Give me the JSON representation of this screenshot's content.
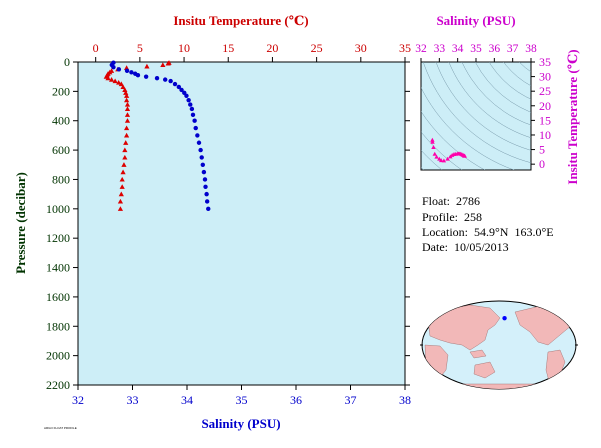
{
  "chart_data": [
    {
      "type": "scatter",
      "name": "main-profile",
      "top_axis": {
        "label": "Insitu Temperature (℃)",
        "range": [
          -2,
          35
        ],
        "ticks": [
          0,
          5,
          10,
          15,
          20,
          25,
          30,
          35
        ],
        "color": "#cc0000"
      },
      "bottom_axis": {
        "label": "Salinity (PSU)",
        "range": [
          32,
          38
        ],
        "ticks": [
          32,
          33,
          34,
          35,
          36,
          37,
          38
        ],
        "color": "#0000cc"
      },
      "left_axis": {
        "label": "Pressure (decibar)",
        "range": [
          0,
          2200
        ],
        "reversed": true,
        "ticks": [
          0,
          200,
          400,
          600,
          800,
          1000,
          1200,
          1400,
          1600,
          1800,
          2000,
          2200
        ],
        "color": "#003300"
      },
      "background": "#cdeef7",
      "series": [
        {
          "variable": "temperature",
          "color": "#dd0000",
          "marker": "triangle",
          "points": [
            [
              8.3,
              5
            ],
            [
              8.2,
              10
            ],
            [
              7.6,
              20
            ],
            [
              5.8,
              30
            ],
            [
              3.5,
              40
            ],
            [
              2.5,
              50
            ],
            [
              1.8,
              60
            ],
            [
              1.6,
              70
            ],
            [
              1.4,
              80
            ],
            [
              1.3,
              90
            ],
            [
              1.2,
              100
            ],
            [
              1.4,
              110
            ],
            [
              1.8,
              120
            ],
            [
              2.2,
              130
            ],
            [
              2.6,
              140
            ],
            [
              2.9,
              150
            ],
            [
              3.1,
              170
            ],
            [
              3.3,
              190
            ],
            [
              3.4,
              210
            ],
            [
              3.5,
              230
            ],
            [
              3.5,
              260
            ],
            [
              3.6,
              290
            ],
            [
              3.6,
              320
            ],
            [
              3.6,
              360
            ],
            [
              3.6,
              400
            ],
            [
              3.5,
              450
            ],
            [
              3.5,
              500
            ],
            [
              3.4,
              550
            ],
            [
              3.3,
              600
            ],
            [
              3.3,
              650
            ],
            [
              3.2,
              700
            ],
            [
              3.1,
              750
            ],
            [
              3.0,
              800
            ],
            [
              3.0,
              850
            ],
            [
              2.9,
              900
            ],
            [
              2.8,
              950
            ],
            [
              2.8,
              1000
            ]
          ]
        },
        {
          "variable": "salinity",
          "color": "#0000cc",
          "marker": "circle",
          "points": [
            [
              32.65,
              5
            ],
            [
              32.62,
              20
            ],
            [
              32.65,
              35
            ],
            [
              32.75,
              50
            ],
            [
              32.9,
              60
            ],
            [
              32.98,
              70
            ],
            [
              33.05,
              80
            ],
            [
              33.1,
              90
            ],
            [
              33.25,
              100
            ],
            [
              33.45,
              110
            ],
            [
              33.6,
              120
            ],
            [
              33.7,
              130
            ],
            [
              33.78,
              150
            ],
            [
              33.85,
              170
            ],
            [
              33.9,
              190
            ],
            [
              33.95,
              210
            ],
            [
              33.99,
              230
            ],
            [
              34.03,
              260
            ],
            [
              34.06,
              290
            ],
            [
              34.09,
              320
            ],
            [
              34.11,
              360
            ],
            [
              34.14,
              400
            ],
            [
              34.16,
              450
            ],
            [
              34.19,
              500
            ],
            [
              34.22,
              550
            ],
            [
              34.25,
              600
            ],
            [
              34.27,
              650
            ],
            [
              34.29,
              700
            ],
            [
              34.31,
              750
            ],
            [
              34.33,
              800
            ],
            [
              34.34,
              850
            ],
            [
              34.36,
              900
            ],
            [
              34.37,
              950
            ],
            [
              34.39,
              1000
            ]
          ]
        }
      ]
    },
    {
      "type": "scatter",
      "name": "t-s-diagram",
      "top_axis": {
        "label": "Salinity (PSU)",
        "range": [
          32,
          38
        ],
        "ticks": [
          32,
          33,
          34,
          35,
          36,
          37,
          38
        ],
        "color": "#cc00cc"
      },
      "right_axis": {
        "label": "Insitu Temperature (℃)",
        "range": [
          -2,
          35
        ],
        "ticks": [
          0,
          5,
          10,
          15,
          20,
          25,
          30,
          35
        ],
        "color": "#cc00cc"
      },
      "background": "#cdeef7",
      "series": [
        {
          "color": "#ff00aa",
          "marker": "triangle",
          "points": [
            [
              32.62,
              8.3
            ],
            [
              32.63,
              7.6
            ],
            [
              32.68,
              5.8
            ],
            [
              32.75,
              3.5
            ],
            [
              32.85,
              2.5
            ],
            [
              33.0,
              1.8
            ],
            [
              33.1,
              1.3
            ],
            [
              33.25,
              1.2
            ],
            [
              33.45,
              1.8
            ],
            [
              33.6,
              2.6
            ],
            [
              33.7,
              3.1
            ],
            [
              33.8,
              3.4
            ],
            [
              33.9,
              3.5
            ],
            [
              34.0,
              3.6
            ],
            [
              34.06,
              3.6
            ],
            [
              34.12,
              3.6
            ],
            [
              34.18,
              3.5
            ],
            [
              34.24,
              3.3
            ],
            [
              34.3,
              3.1
            ],
            [
              34.35,
              2.9
            ],
            [
              34.39,
              2.8
            ]
          ]
        }
      ]
    }
  ],
  "info": {
    "float": "Float:  2786",
    "profile": "Profile:  258",
    "location": "Location:  54.9°N  163.0°E",
    "date": "Date:  10/05/2013"
  },
  "map": {
    "marker_lat": 54.9,
    "marker_lon": 163.0,
    "marker_color": "#0000ff",
    "land_color": "#f2b8b8",
    "ocean_color": "#d4f0fa"
  },
  "footer": "ARGO FLOAT PROFILE"
}
